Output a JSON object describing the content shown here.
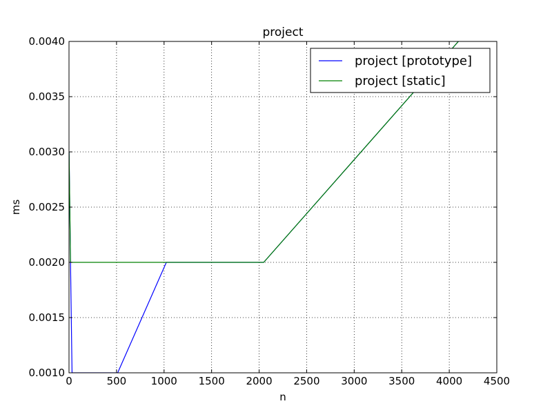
{
  "chart_data": {
    "type": "line",
    "title": "project",
    "xlabel": "n",
    "ylabel": "ms",
    "xlim": [
      0,
      4500
    ],
    "ylim": [
      0.001,
      0.004
    ],
    "grid": true,
    "legend_position": "top-right",
    "xticks": [
      0,
      500,
      1000,
      1500,
      2000,
      2500,
      3000,
      3500,
      4000,
      4500
    ],
    "xtick_labels": [
      "0",
      "500",
      "1000",
      "1500",
      "2000",
      "2500",
      "3000",
      "3500",
      "4000",
      "4500"
    ],
    "yticks": [
      0.001,
      0.0015,
      0.002,
      0.0025,
      0.003,
      0.0035,
      0.004
    ],
    "ytick_labels": [
      "0.0010",
      "0.0015",
      "0.0020",
      "0.0025",
      "0.0030",
      "0.0035",
      "0.0040"
    ],
    "series": [
      {
        "name": "project [prototype]",
        "color": "#0000ff",
        "x": [
          1,
          16,
          32,
          64,
          128,
          256,
          512,
          1024,
          2048,
          4096
        ],
        "y": [
          0.003,
          0.002,
          0.001,
          0.001,
          0.001,
          0.001,
          0.001,
          0.002,
          0.002,
          0.004
        ]
      },
      {
        "name": "project [static]",
        "color": "#008000",
        "x": [
          1,
          16,
          32,
          64,
          128,
          256,
          512,
          1024,
          2048,
          4096
        ],
        "y": [
          0.003,
          0.002,
          0.002,
          0.002,
          0.002,
          0.002,
          0.002,
          0.002,
          0.002,
          0.004
        ]
      }
    ]
  }
}
